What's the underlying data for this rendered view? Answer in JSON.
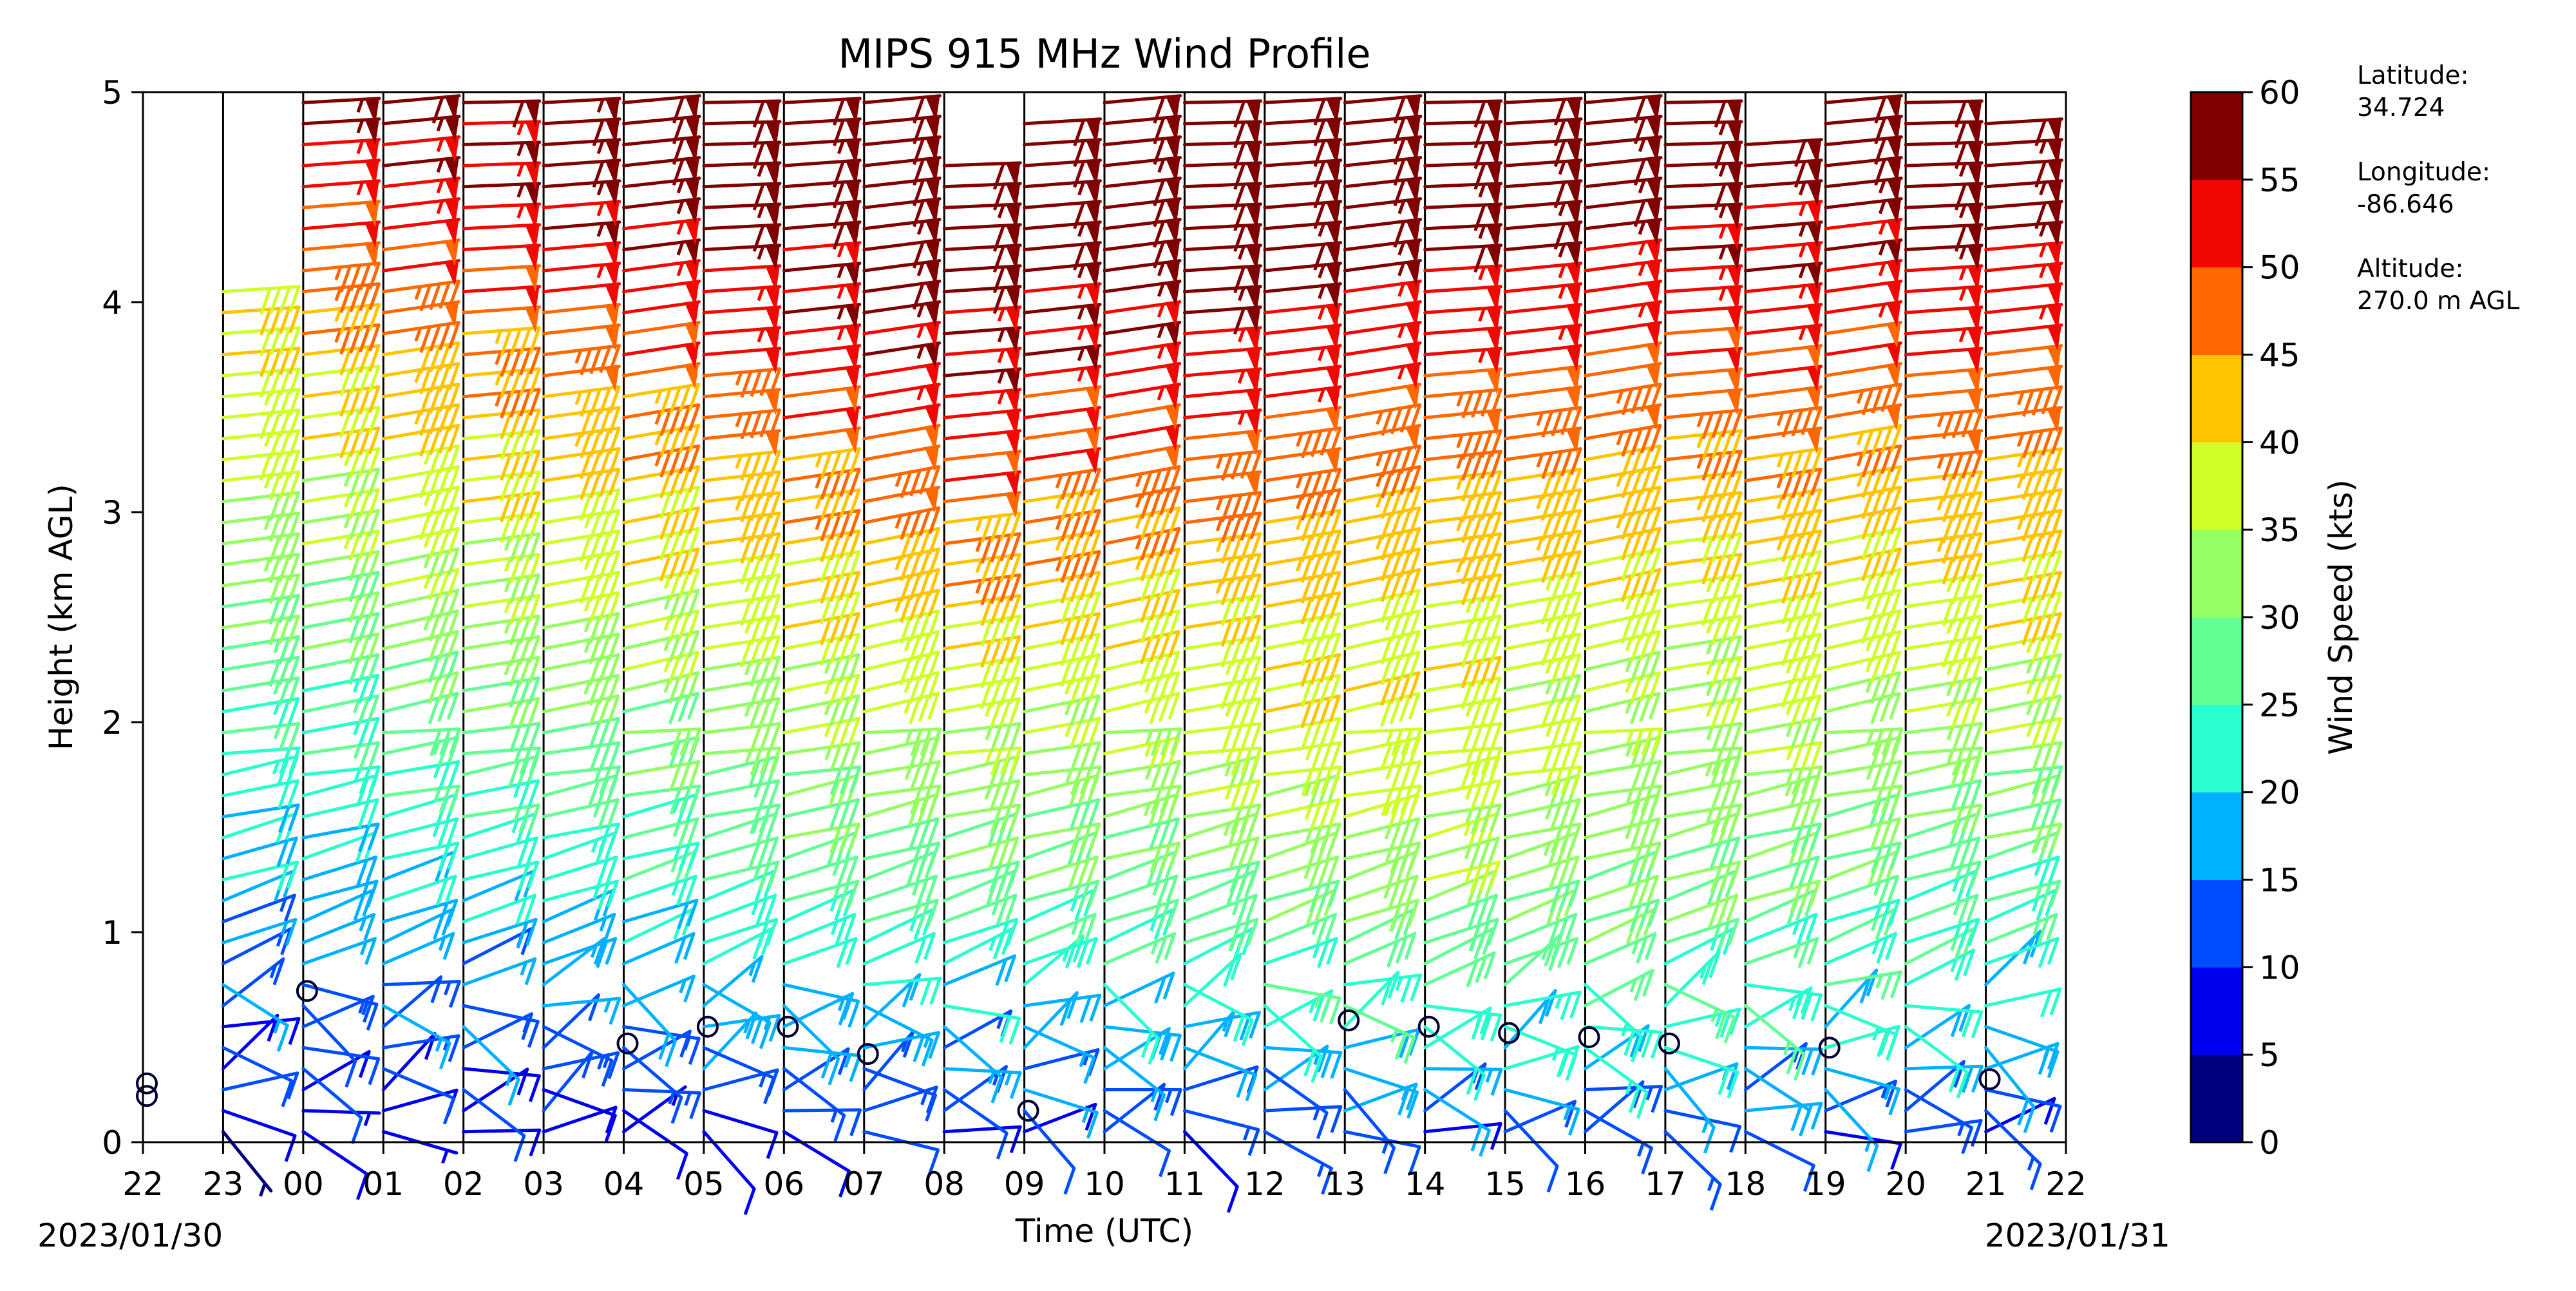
{
  "chart_data": {
    "type": "wind-barb-time-height",
    "title": "MIPS 915 MHz Wind Profile",
    "xlabel": "Time (UTC)",
    "ylabel": "Height (km AGL)",
    "x_tick_labels": [
      "22",
      "23",
      "00",
      "01",
      "02",
      "03",
      "04",
      "05",
      "06",
      "07",
      "08",
      "09",
      "10",
      "11",
      "12",
      "13",
      "14",
      "15",
      "16",
      "17",
      "18",
      "19",
      "20",
      "21",
      "22"
    ],
    "xlim_hours": [
      22,
      46
    ],
    "start_date": "2023/01/30",
    "end_date": "2023/01/31",
    "ylim": [
      0,
      5
    ],
    "y_ticks": [
      0,
      1,
      2,
      3,
      4,
      5
    ],
    "profile_hours": [
      23,
      24,
      25,
      26,
      27,
      28,
      29,
      30,
      31,
      32,
      33,
      34,
      35,
      36,
      37,
      38,
      39,
      40,
      41,
      42,
      43,
      44,
      45
    ],
    "profiles": [
      {
        "top_km": 4.05,
        "speeds": [
          6,
          12,
          18,
          22,
          28,
          33,
          38,
          41
        ]
      },
      {
        "top_km": 5.0,
        "speeds": [
          7,
          13,
          19,
          24,
          30,
          36,
          42,
          50,
          57
        ]
      },
      {
        "top_km": 5.0,
        "speeds": [
          7,
          14,
          20,
          27,
          33,
          38,
          44,
          52,
          58
        ]
      },
      {
        "top_km": 5.0,
        "speeds": [
          7,
          14,
          21,
          28,
          34,
          39,
          45,
          53,
          58
        ]
      },
      {
        "top_km": 5.0,
        "speeds": [
          8,
          15,
          22,
          29,
          35,
          40,
          47,
          55,
          59
        ]
      },
      {
        "top_km": 5.0,
        "speeds": [
          8,
          16,
          24,
          30,
          36,
          42,
          49,
          56,
          60
        ]
      },
      {
        "top_km": 5.0,
        "speeds": [
          8,
          17,
          25,
          31,
          37,
          43,
          50,
          57,
          60
        ]
      },
      {
        "top_km": 5.0,
        "speeds": [
          9,
          18,
          27,
          33,
          39,
          45,
          52,
          58,
          60
        ]
      },
      {
        "top_km": 5.0,
        "speeds": [
          9,
          19,
          28,
          33,
          40,
          47,
          54,
          59,
          60
        ]
      },
      {
        "top_km": 4.65,
        "speeds": [
          8,
          18,
          28,
          33,
          40,
          46,
          53,
          58,
          60
        ]
      },
      {
        "top_km": 4.85,
        "speeds": [
          10,
          19,
          28,
          33,
          40,
          46,
          53,
          58,
          60
        ]
      },
      {
        "top_km": 5.0,
        "speeds": [
          10,
          20,
          29,
          35,
          40,
          47,
          54,
          59,
          60
        ]
      },
      {
        "top_km": 5.0,
        "speeds": [
          10,
          21,
          30,
          37,
          40,
          47,
          54,
          59,
          60
        ]
      },
      {
        "top_km": 5.0,
        "speeds": [
          10,
          22,
          32,
          38,
          40,
          46,
          53,
          58,
          60
        ]
      },
      {
        "top_km": 5.0,
        "speeds": [
          10,
          24,
          33,
          38,
          39,
          45,
          52,
          57,
          60
        ]
      },
      {
        "top_km": 5.0,
        "speeds": [
          10,
          24,
          33,
          37,
          39,
          44,
          51,
          57,
          60
        ]
      },
      {
        "top_km": 5.0,
        "speeds": [
          10,
          25,
          32,
          36,
          38,
          44,
          51,
          57,
          60
        ]
      },
      {
        "top_km": 5.0,
        "speeds": [
          10,
          25,
          31,
          35,
          38,
          43,
          50,
          56,
          60
        ]
      },
      {
        "top_km": 5.0,
        "speeds": [
          10,
          24,
          30,
          34,
          37,
          43,
          50,
          56,
          60
        ]
      },
      {
        "top_km": 4.8,
        "speeds": [
          10,
          24,
          29,
          34,
          37,
          43,
          49,
          55,
          59
        ]
      },
      {
        "top_km": 5.0,
        "speeds": [
          10,
          23,
          28,
          33,
          37,
          43,
          50,
          56,
          60
        ]
      },
      {
        "top_km": 5.0,
        "speeds": [
          10,
          22,
          27,
          33,
          38,
          44,
          51,
          57,
          60
        ]
      },
      {
        "top_km": 4.9,
        "speeds": [
          10,
          20,
          26,
          32,
          38,
          43,
          49,
          55,
          58
        ]
      }
    ],
    "colorbar": {
      "label": "Wind Speed (kts)",
      "ticks": [
        0,
        5,
        10,
        15,
        20,
        25,
        30,
        35,
        40,
        45,
        50,
        55,
        60
      ],
      "colors": [
        "#000080",
        "#0000f1",
        "#004dff",
        "#00b1ff",
        "#29ffce",
        "#62ff94",
        "#94ff62",
        "#ceff29",
        "#ffc400",
        "#ff6800",
        "#f10800",
        "#800000"
      ]
    },
    "station": {
      "latitude_label": "Latitude:",
      "latitude": "34.724",
      "longitude_label": "Longitude:",
      "longitude": "-86.646",
      "altitude_label": "Altitude:",
      "altitude": "270.0 m AGL"
    }
  }
}
